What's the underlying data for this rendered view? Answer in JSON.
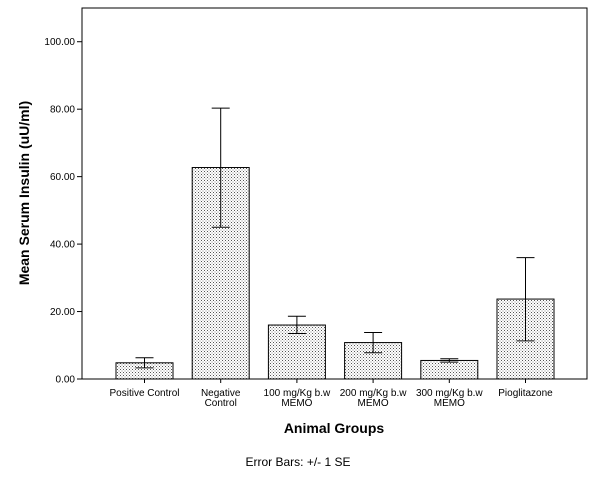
{
  "chart_data": {
    "type": "bar",
    "title": "",
    "xlabel": "Animal Groups",
    "ylabel": "Mean Serum Insulin (uU/ml)",
    "footnote": "Error Bars: +/- 1 SE",
    "ylim": [
      0,
      110
    ],
    "yticks": [
      "0.00",
      "20.00",
      "40.00",
      "60.00",
      "80.00",
      "100.00"
    ],
    "ytick_values": [
      0,
      20,
      40,
      60,
      80,
      100
    ],
    "categories": [
      [
        "Positive Control"
      ],
      [
        "Negative",
        "Control"
      ],
      [
        "100 mg/Kg b.w",
        "MEMO"
      ],
      [
        "200 mg/Kg b.w",
        "MEMO"
      ],
      [
        "300 mg/Kg b.w",
        "MEMO"
      ],
      [
        "Pioglitazone"
      ]
    ],
    "values": [
      4.8,
      62.7,
      16.0,
      10.8,
      5.5,
      23.7
    ],
    "error_low": [
      3.3,
      45.0,
      13.5,
      7.8,
      5.0,
      11.3
    ],
    "error_high": [
      6.3,
      80.3,
      18.6,
      13.8,
      6.0,
      36.0
    ],
    "grid": false,
    "bar_fill": "dotted-pattern"
  }
}
